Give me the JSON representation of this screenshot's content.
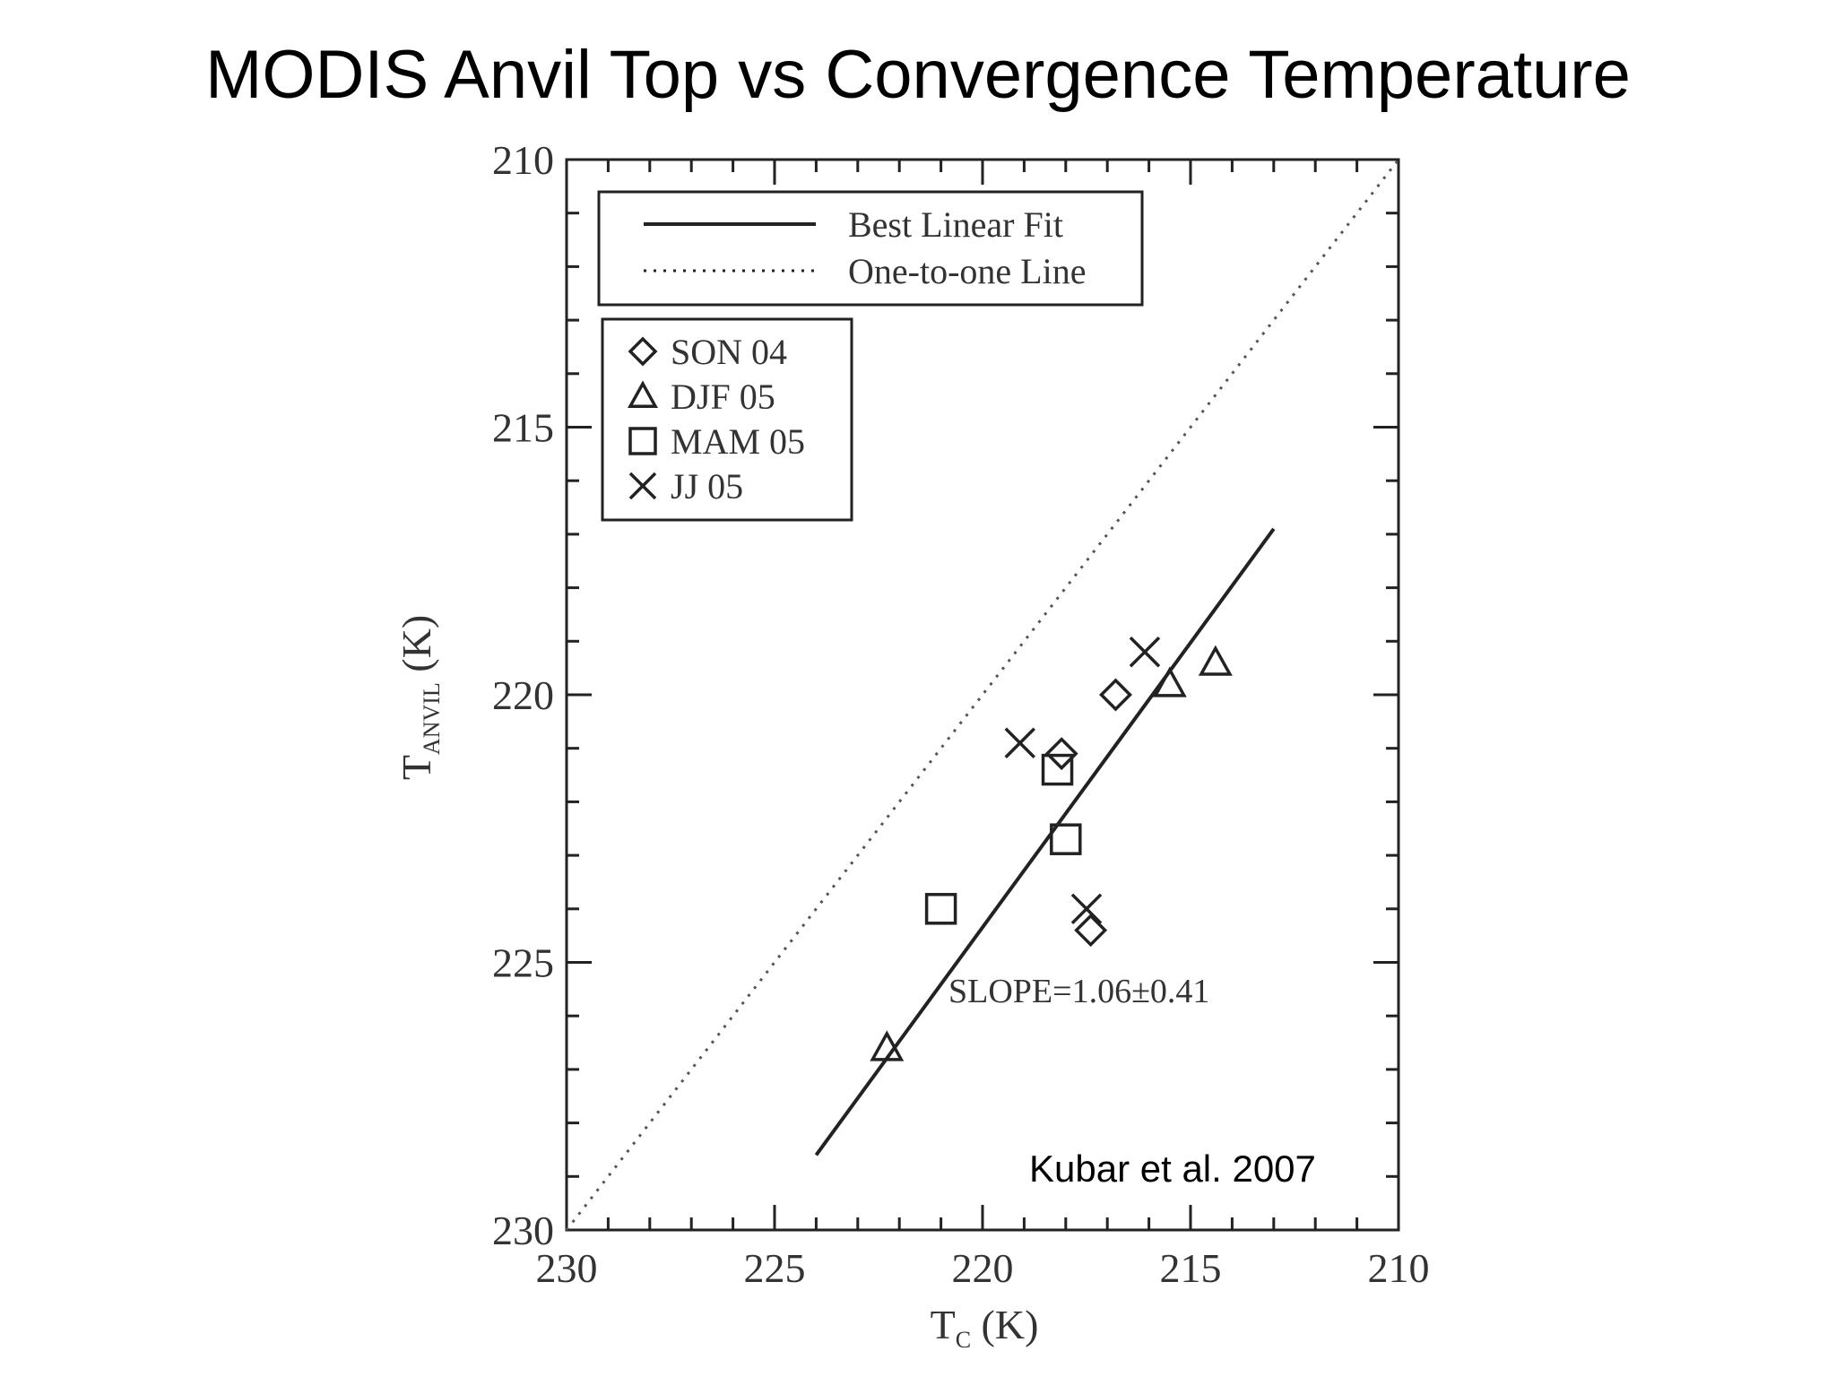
{
  "slide": {
    "title": "MODIS Anvil Top vs Convergence Temperature",
    "citation": "Kubar et al. 2007"
  },
  "chart_data": {
    "type": "scatter",
    "xlabel_main": "T",
    "xlabel_sub": "C",
    "xlabel_unit": " (K)",
    "ylabel_main": "T",
    "ylabel_sub": "ANVIL",
    "ylabel_unit": " (K)",
    "xlim": [
      230,
      210
    ],
    "ylim": [
      230,
      210
    ],
    "x_reversed": true,
    "y_reversed": true,
    "xticks": [
      230,
      225,
      220,
      215,
      210
    ],
    "yticks": [
      210,
      215,
      220,
      225,
      230
    ],
    "grid": false,
    "legend_lines": [
      {
        "label": "Best Linear Fit",
        "style": "solid"
      },
      {
        "label": "One-to-one Line",
        "style": "dotted"
      }
    ],
    "legend_markers": [
      {
        "label": "SON 04",
        "marker": "diamond"
      },
      {
        "label": "DJF 05",
        "marker": "triangle"
      },
      {
        "label": "MAM 05",
        "marker": "square"
      },
      {
        "label": "JJ 05",
        "marker": "x"
      }
    ],
    "series": [
      {
        "name": "SON 04",
        "marker": "diamond",
        "points": [
          [
            216.8,
            220.0
          ],
          [
            218.1,
            221.1
          ],
          [
            217.4,
            224.4
          ]
        ]
      },
      {
        "name": "DJF 05",
        "marker": "triangle",
        "points": [
          [
            222.3,
            226.6
          ],
          [
            215.5,
            219.8
          ],
          [
            214.4,
            219.4
          ]
        ]
      },
      {
        "name": "MAM 05",
        "marker": "square",
        "points": [
          [
            221.0,
            224.0
          ],
          [
            218.0,
            222.7
          ],
          [
            218.2,
            221.4
          ]
        ]
      },
      {
        "name": "JJ 05",
        "marker": "x",
        "points": [
          [
            219.1,
            220.9
          ],
          [
            217.5,
            224.0
          ],
          [
            216.1,
            219.2
          ]
        ]
      }
    ],
    "fit_line": {
      "x": [
        224.0,
        213.0
      ],
      "y": [
        228.6,
        216.9
      ]
    },
    "one_to_one": {
      "x": [
        230.0,
        210.0
      ],
      "y": [
        230.0,
        210.0
      ]
    },
    "annotation": "SLOPE=1.06±0.41"
  }
}
